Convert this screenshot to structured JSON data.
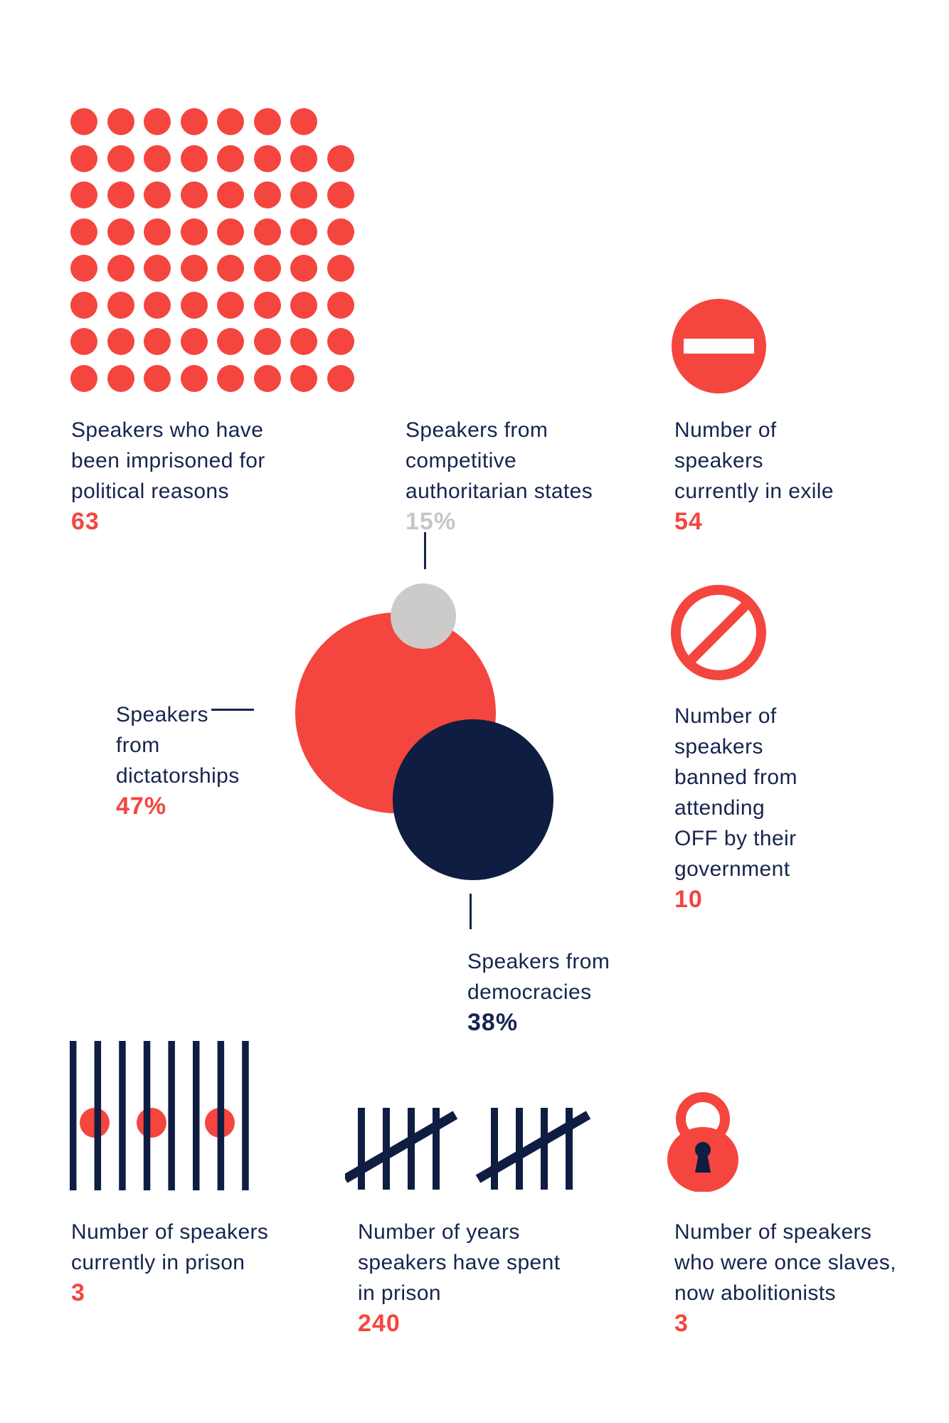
{
  "colors": {
    "accent_red": "#F4453E",
    "navy": "#0F1D42",
    "text_navy": "#16254E",
    "gray_bubble": "#CCCBC9",
    "gray_text": "#C7C6C4",
    "background": "#FFFFFF"
  },
  "stats": {
    "imprisoned": {
      "lines": [
        "Speakers who have",
        "been imprisoned for",
        "political reasons"
      ],
      "value": "63"
    },
    "competitive": {
      "lines": [
        "Speakers from",
        "competitive",
        "authoritarian states"
      ],
      "value": "15%"
    },
    "exile": {
      "lines": [
        "Number of",
        "speakers",
        "currently in exile"
      ],
      "value": "54"
    },
    "dictatorships": {
      "lines": [
        "Speakers",
        "from",
        "dictatorships"
      ],
      "value": "47%"
    },
    "democracies": {
      "lines": [
        "Speakers from",
        "democracies"
      ],
      "value": "38%"
    },
    "banned": {
      "lines": [
        "Number of",
        "speakers",
        "banned from",
        "attending",
        "OFF by their",
        "government"
      ],
      "value": "10"
    },
    "prison": {
      "lines": [
        "Number of speakers",
        "currently in prison"
      ],
      "value": "3"
    },
    "years": {
      "lines": [
        "Number of years",
        "speakers have spent",
        "in prison"
      ],
      "value": "240"
    },
    "slaves": {
      "lines": [
        "Number of speakers",
        "who were once slaves,",
        "now abolitionists"
      ],
      "value": "3"
    }
  },
  "dot_grid": {
    "rows": [
      7,
      8,
      8,
      8,
      8,
      8,
      8,
      8
    ],
    "total": 63
  },
  "chart_data": {
    "type": "bubble",
    "title": "",
    "series": [
      {
        "name": "Speakers from dictatorships",
        "value_pct": 47,
        "color": "#F4453E"
      },
      {
        "name": "Speakers from democracies",
        "value_pct": 38,
        "color": "#0F1D42"
      },
      {
        "name": "Speakers from competitive authoritarian states",
        "value_pct": 15,
        "color": "#CCCBC9"
      }
    ],
    "pictograph_stats": [
      {
        "label": "Speakers who have been imprisoned for political reasons",
        "value": 63,
        "glyph": "dot-grid"
      },
      {
        "label": "Number of speakers currently in exile",
        "value": 54,
        "glyph": "no-entry-sign"
      },
      {
        "label": "Number of speakers banned from attending OFF by their government",
        "value": 10,
        "glyph": "prohibited-sign"
      },
      {
        "label": "Number of speakers currently in prison",
        "value": 3,
        "glyph": "prison-bars"
      },
      {
        "label": "Number of years speakers have spent in prison",
        "value": 240,
        "glyph": "tally-marks"
      },
      {
        "label": "Number of speakers who were once slaves, now abolitionists",
        "value": 3,
        "glyph": "padlock"
      }
    ],
    "legend_position": "none",
    "grid": false
  }
}
